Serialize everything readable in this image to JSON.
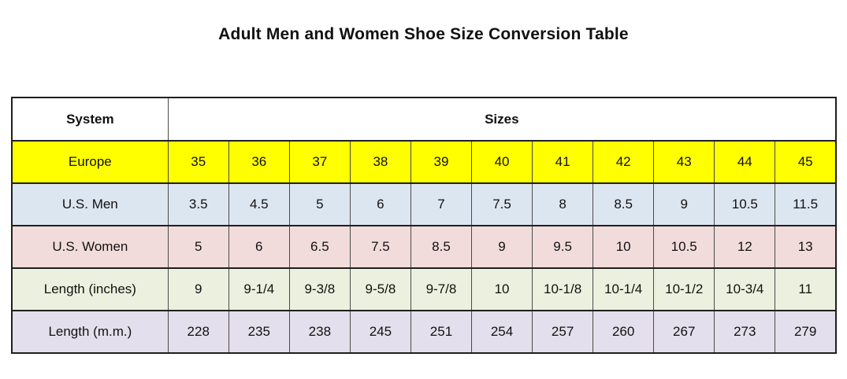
{
  "title": "Adult Men and Women Shoe Size Conversion Table",
  "colors": {
    "europe_row": "#FFFF00",
    "us_men_row": "#DCE6F1",
    "us_women_row": "#F2DCDB",
    "length_inches_row": "#EBF1DE",
    "length_mm_row": "#E4DFEC",
    "border": "#1f1f1f",
    "background": "#FFFFFF"
  },
  "table": {
    "header": {
      "system_label": "System",
      "sizes_label": "Sizes"
    },
    "rows": [
      {
        "key": "europe",
        "label": "Europe",
        "bg": "#FFFF00",
        "values": [
          "35",
          "36",
          "37",
          "38",
          "39",
          "40",
          "41",
          "42",
          "43",
          "44",
          "45"
        ]
      },
      {
        "key": "us-men",
        "label": "U.S. Men",
        "bg": "#DCE6F1",
        "values": [
          "3.5",
          "4.5",
          "5",
          "6",
          "7",
          "7.5",
          "8",
          "8.5",
          "9",
          "10.5",
          "11.5"
        ]
      },
      {
        "key": "us-women",
        "label": "U.S. Women",
        "bg": "#F2DCDB",
        "values": [
          "5",
          "6",
          "6.5",
          "7.5",
          "8.5",
          "9",
          "9.5",
          "10",
          "10.5",
          "12",
          "13"
        ]
      },
      {
        "key": "length-inches",
        "label": "Length (inches)",
        "bg": "#EBF1DE",
        "values": [
          "9",
          "9-1/4",
          "9-3/8",
          "9-5/8",
          "9-7/8",
          "10",
          "10-1/8",
          "10-1/4",
          "10-1/2",
          "10-3/4",
          "11"
        ]
      },
      {
        "key": "length-mm",
        "label": "Length (m.m.)",
        "bg": "#E4DFEC",
        "values": [
          "228",
          "235",
          "238",
          "245",
          "251",
          "254",
          "257",
          "260",
          "267",
          "273",
          "279"
        ]
      }
    ]
  }
}
